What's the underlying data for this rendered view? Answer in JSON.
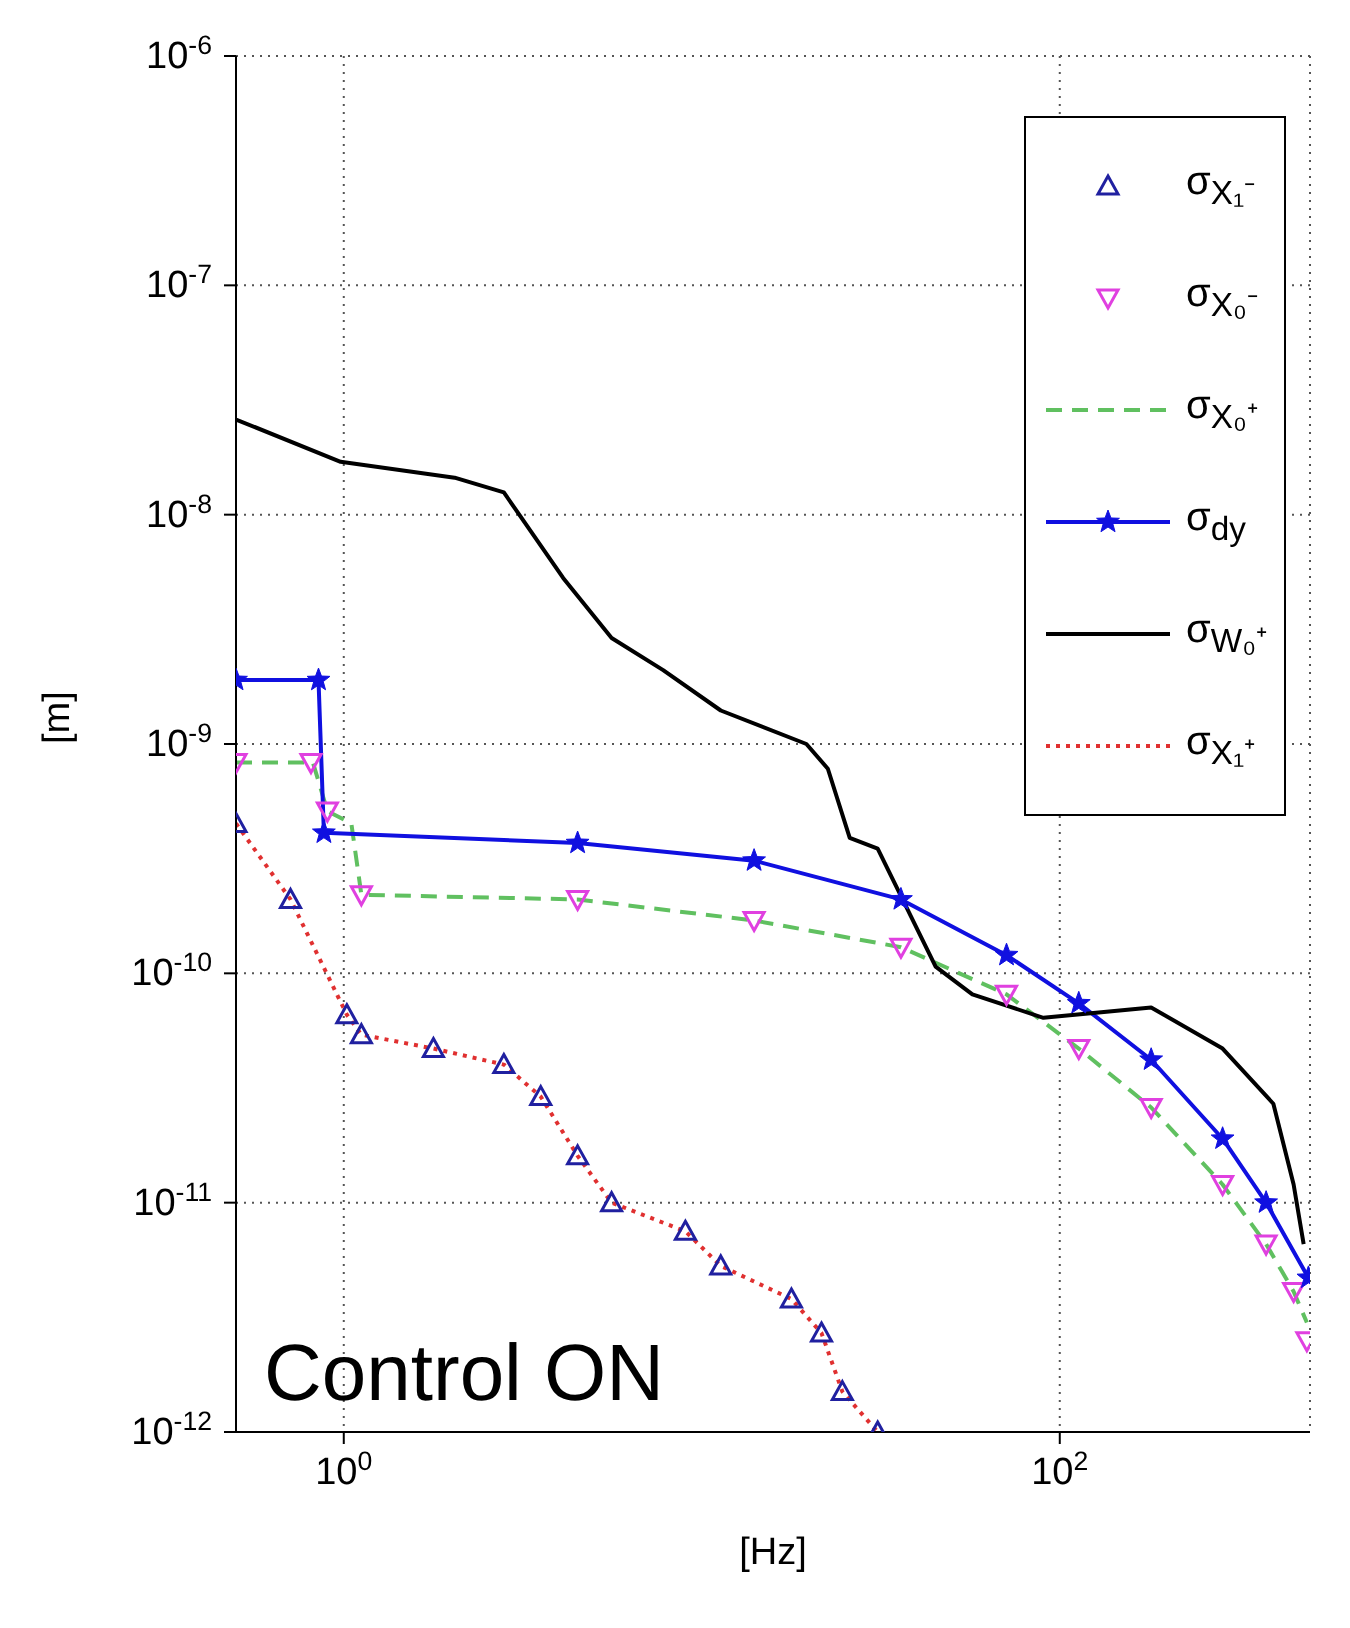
{
  "chart_data": {
    "type": "line",
    "xlabel": "[Hz]",
    "ylabel": "[m]",
    "log": "xy",
    "grid": true,
    "legend": "top right",
    "xlim": [
      0.5,
      500
    ],
    "xticks": [
      {
        "value": 1,
        "label": "10$^{0}$"
      },
      {
        "value": 100,
        "label": "10$^{2}$"
      }
    ],
    "ylim": [
      1e-12,
      1e-06
    ],
    "yticks": [
      {
        "value": 1e-12,
        "label": "10$^{-12}$"
      },
      {
        "value": 1e-11,
        "label": "10$^{-11}$"
      },
      {
        "value": 1e-10,
        "label": "10$^{-10}$"
      },
      {
        "value": 1e-09,
        "label": "10$^{-9}$"
      },
      {
        "value": 1e-08,
        "label": "10$^{-8}$"
      },
      {
        "value": 1e-07,
        "label": "10$^{-7}$"
      },
      {
        "value": 1e-06,
        "label": "10$^{-6}$"
      }
    ],
    "annotations": [
      "Control ON"
    ],
    "series": [
      {
        "name": "σ$_{X₁⁻}$",
        "type": "scatter",
        "marker": "triangle",
        "color": "#2020a0",
        "x": [
          0.5,
          0.71,
          1.02,
          1.12,
          1.78,
          2.8,
          3.55,
          4.5,
          5.6,
          9,
          11.3,
          17.8,
          21.6,
          24.7,
          31
        ],
        "values": [
          4.5e-10,
          2.1e-10,
          6.6e-11,
          5.4e-11,
          4.7e-11,
          4e-11,
          2.9e-11,
          1.6e-11,
          1e-11,
          7.5e-12,
          5.3e-12,
          3.8e-12,
          2.7e-12,
          1.5e-12,
          1e-12
        ]
      },
      {
        "name": "σ$_{X₀⁻}$",
        "type": "scatter",
        "marker": "triangle-down",
        "color": "#e040e0",
        "x": [
          0.5,
          0.81,
          0.9,
          1.12,
          4.5,
          14,
          36,
          71,
          113,
          180,
          285,
          377,
          450,
          490
        ],
        "values": [
          8.3e-10,
          8.3e-10,
          5.1e-10,
          2.2e-10,
          2.1e-10,
          1.7e-10,
          1.3e-10,
          8.1e-11,
          4.7e-11,
          2.6e-11,
          1.2e-11,
          6.6e-12,
          4.1e-12,
          2.5e-12
        ]
      },
      {
        "name": "σ$_{X₀⁺}$",
        "line_style": "dashed",
        "color": "#60c060",
        "x": [
          0.5,
          0.82,
          0.9,
          1.05,
          1.12,
          4.5,
          14,
          36,
          71,
          113,
          180,
          285,
          377,
          450,
          490
        ],
        "values": [
          8.3e-10,
          8.3e-10,
          5.1e-10,
          4.5e-10,
          2.2e-10,
          2.1e-10,
          1.7e-10,
          1.3e-10,
          8.1e-11,
          4.7e-11,
          2.6e-11,
          1.2e-11,
          6.6e-12,
          4.1e-12,
          3e-12
        ]
      },
      {
        "name": "σ$_{dy}$",
        "line_style": "solid",
        "marker": "star",
        "color": "#1010e0",
        "x": [
          0.5,
          0.85,
          0.88,
          4.5,
          14,
          36,
          71,
          113,
          180,
          285,
          377,
          495
        ],
        "values": [
          1.9e-09,
          1.9e-09,
          4.1e-10,
          3.7e-10,
          3.1e-10,
          2.1e-10,
          1.2e-10,
          7.4e-11,
          4.2e-11,
          1.9e-11,
          1e-11,
          4.7e-12
        ]
      },
      {
        "name": "σ$_{W₀⁺}$",
        "line_style": "solid",
        "color": "#000000",
        "x": [
          0.5,
          0.98,
          2.04,
          2.8,
          4.1,
          5.6,
          7.8,
          11.3,
          19.6,
          22.5,
          25.9,
          31,
          45,
          57,
          90,
          180,
          285,
          395,
          450,
          480
        ],
        "values": [
          2.6e-08,
          1.7e-08,
          1.45e-08,
          1.25e-08,
          5.3e-09,
          2.9e-09,
          2.1e-09,
          1.4e-09,
          1e-09,
          7.8e-10,
          3.9e-10,
          3.5e-10,
          1.07e-10,
          8.1e-11,
          6.4e-11,
          7.1e-11,
          4.7e-11,
          2.7e-11,
          1.2e-11,
          6.6e-12
        ]
      },
      {
        "name": "σ$_{X₁⁺}$",
        "line_style": "dotted",
        "color": "#e03030",
        "x": [
          0.5,
          0.71,
          1.02,
          1.12,
          1.78,
          2.8,
          3.55,
          4.5,
          5.6,
          9,
          11.3,
          17.8,
          21.6,
          24.7,
          31
        ],
        "values": [
          4.5e-10,
          2.1e-10,
          6.6e-11,
          5.4e-11,
          4.7e-11,
          4e-11,
          2.9e-11,
          1.6e-11,
          1e-11,
          7.5e-12,
          5.3e-12,
          3.8e-12,
          2.7e-12,
          1.5e-12,
          1e-12
        ]
      }
    ]
  }
}
